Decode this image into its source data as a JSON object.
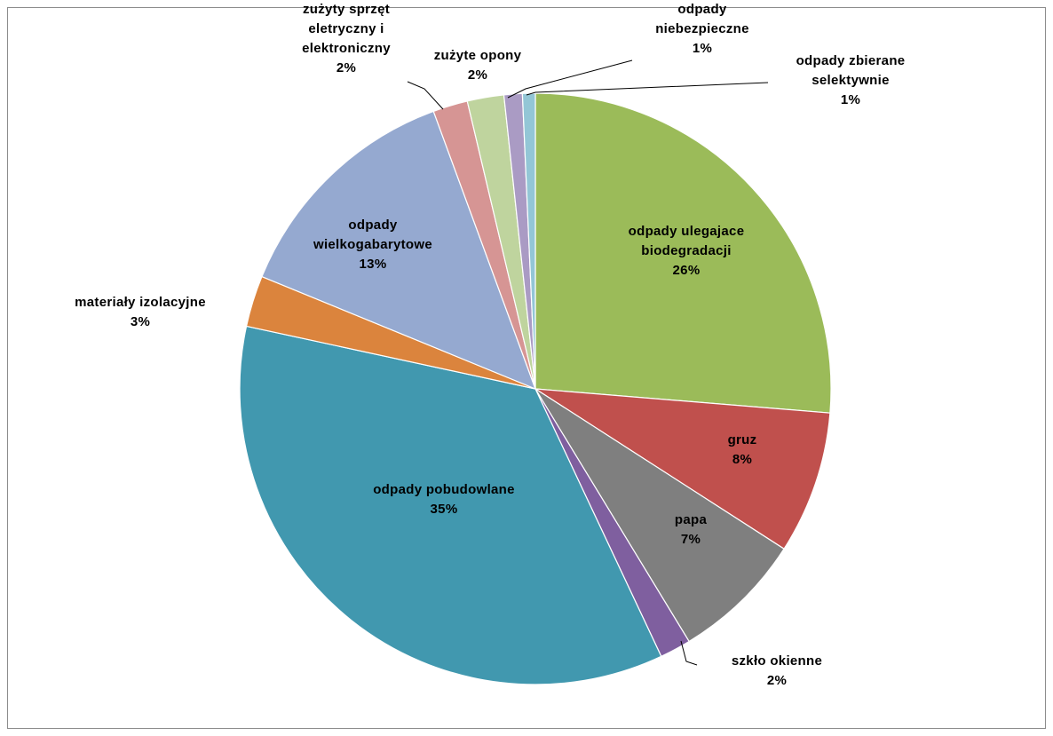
{
  "chart_data": {
    "type": "pie",
    "title": "",
    "start_angle_deg": 0,
    "direction": "clockwise",
    "slices": [
      {
        "label_lines": [
          "odpady ulegajace",
          "biodegradacji"
        ],
        "pct_label": "26%",
        "value": 26.3,
        "color": "#9BBB59"
      },
      {
        "label_lines": [
          "gruz"
        ],
        "pct_label": "8%",
        "value": 7.8,
        "color": "#C0504D"
      },
      {
        "label_lines": [
          "papa"
        ],
        "pct_label": "7%",
        "value": 7.2,
        "color": "#7F7F7F"
      },
      {
        "label_lines": [
          "szkło okienne"
        ],
        "pct_label": "2%",
        "value": 1.7,
        "color": "#7F5F9F"
      },
      {
        "label_lines": [
          "odpady pobudowlane"
        ],
        "pct_label": "35%",
        "value": 35.4,
        "color": "#4198AF"
      },
      {
        "label_lines": [
          "materiały izolacyjne"
        ],
        "pct_label": "3%",
        "value": 2.8,
        "color": "#DB843D"
      },
      {
        "label_lines": [
          "odpady",
          "wielkogabarytowe"
        ],
        "pct_label": "13%",
        "value": 13.2,
        "color": "#95A9D0"
      },
      {
        "label_lines": [
          "zużyty sprzęt",
          "eletryczny i",
          "elektroniczny"
        ],
        "pct_label": "2%",
        "value": 1.9,
        "color": "#D69594"
      },
      {
        "label_lines": [
          "zużyte opony"
        ],
        "pct_label": "2%",
        "value": 2.0,
        "color": "#BFD49E"
      },
      {
        "label_lines": [
          "odpady",
          "niebezpieczne"
        ],
        "pct_label": "1%",
        "value": 1.0,
        "color": "#AA9BC4"
      },
      {
        "label_lines": [
          "odpady zbierane",
          "selektywnie"
        ],
        "pct_label": "1%",
        "value": 0.7,
        "color": "#93C6D6"
      }
    ]
  }
}
